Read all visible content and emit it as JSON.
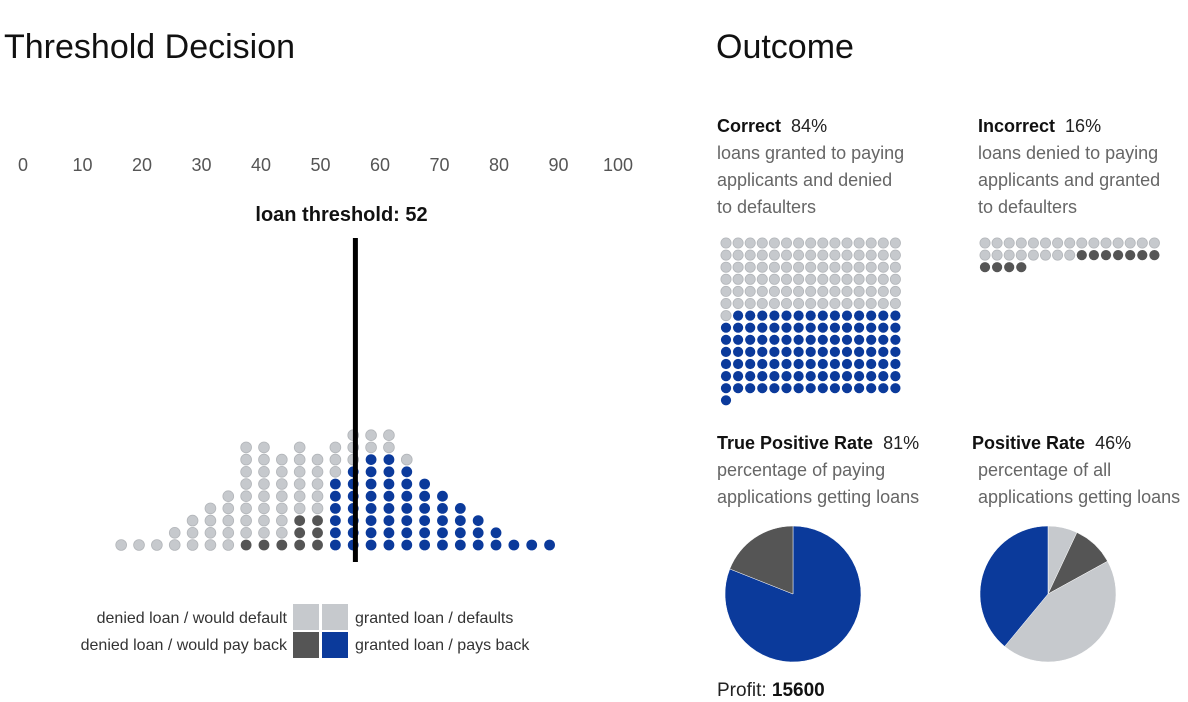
{
  "titles": {
    "left": "Threshold Decision",
    "right": "Outcome"
  },
  "threshold": {
    "label": "loan threshold:",
    "value": 52
  },
  "axis": {
    "ticks": [
      "0",
      "10",
      "20",
      "30",
      "40",
      "50",
      "60",
      "70",
      "80",
      "90",
      "100"
    ]
  },
  "colors": {
    "denied_default": "#c6c9cd",
    "denied_payback": "#555555",
    "granted_default": "#c6c9cd",
    "granted_payback": "#0b3a9b",
    "threshold_line": "#000000"
  },
  "legend": {
    "denied_default": "denied loan / would default",
    "denied_payback": "denied loan / would pay back",
    "granted_default": "granted loan / defaults",
    "granted_payback": "granted loan / pays back"
  },
  "outcome": {
    "correct": {
      "label": "Correct",
      "pct": "84%",
      "desc": [
        "loans granted to paying",
        "applicants and denied",
        "to defaulters"
      ]
    },
    "incorrect": {
      "label": "Incorrect",
      "pct": "16%",
      "desc": [
        "loans denied to paying",
        "applicants and granted",
        "to defaulters"
      ]
    },
    "tpr": {
      "label": "True Positive Rate",
      "pct": "81%",
      "desc": [
        "percentage of paying",
        "applications getting loans"
      ]
    },
    "pr": {
      "label": "Positive Rate",
      "pct": "46%",
      "desc": [
        "percentage of all",
        "applications getting loans"
      ]
    }
  },
  "profit": {
    "label": "Profit:",
    "value": "15600"
  },
  "chart_data": {
    "type": "scatter",
    "description_of_marks": "dot histogram of applicants by credit score (one dot per applicant)",
    "x_range": [
      0,
      100
    ],
    "bin_width": 3,
    "threshold": 52,
    "columns": [
      {
        "score": 16.5,
        "pay": 0,
        "default": 1
      },
      {
        "score": 19.5,
        "pay": 0,
        "default": 1
      },
      {
        "score": 22.5,
        "pay": 0,
        "default": 1
      },
      {
        "score": 25.5,
        "pay": 0,
        "default": 2
      },
      {
        "score": 28.5,
        "pay": 0,
        "default": 3
      },
      {
        "score": 31.5,
        "pay": 0,
        "default": 4
      },
      {
        "score": 34.5,
        "pay": 0,
        "default": 5
      },
      {
        "score": 37.5,
        "pay": 1,
        "default": 8
      },
      {
        "score": 40.5,
        "pay": 1,
        "default": 8
      },
      {
        "score": 43.5,
        "pay": 1,
        "default": 7
      },
      {
        "score": 46.5,
        "pay": 3,
        "default": 6
      },
      {
        "score": 49.5,
        "pay": 3,
        "default": 5
      },
      {
        "score": 52.5,
        "pay": 6,
        "default": 3
      },
      {
        "score": 55.5,
        "pay": 7,
        "default": 3
      },
      {
        "score": 58.5,
        "pay": 8,
        "default": 2
      },
      {
        "score": 61.5,
        "pay": 8,
        "default": 2
      },
      {
        "score": 64.5,
        "pay": 7,
        "default": 1
      },
      {
        "score": 67.5,
        "pay": 6,
        "default": 0
      },
      {
        "score": 70.5,
        "pay": 5,
        "default": 0
      },
      {
        "score": 73.5,
        "pay": 4,
        "default": 0
      },
      {
        "score": 76.5,
        "pay": 3,
        "default": 0
      },
      {
        "score": 79.5,
        "pay": 2,
        "default": 0
      },
      {
        "score": 82.5,
        "pay": 1,
        "default": 0
      },
      {
        "score": 85.5,
        "pay": 1,
        "default": 0
      },
      {
        "score": 88.5,
        "pay": 1,
        "default": 0
      }
    ],
    "waffle_correct": {
      "granted_paying": 105,
      "denied_defaulting": 91
    },
    "waffle_incorrect": {
      "granted_defaulting": 23,
      "denied_paying": 11
    },
    "pie_tpr": [
      {
        "name": "granted loan / pays back",
        "value": 81
      },
      {
        "name": "denied loan / would pay back",
        "value": 19
      }
    ],
    "pie_positive_rate": [
      {
        "name": "granted loan / defaults",
        "value": 7
      },
      {
        "name": "denied loan / would pay back",
        "value": 10
      },
      {
        "name": "denied loan / would default",
        "value": 44
      },
      {
        "name": "granted loan / pays back",
        "value": 39
      }
    ]
  }
}
